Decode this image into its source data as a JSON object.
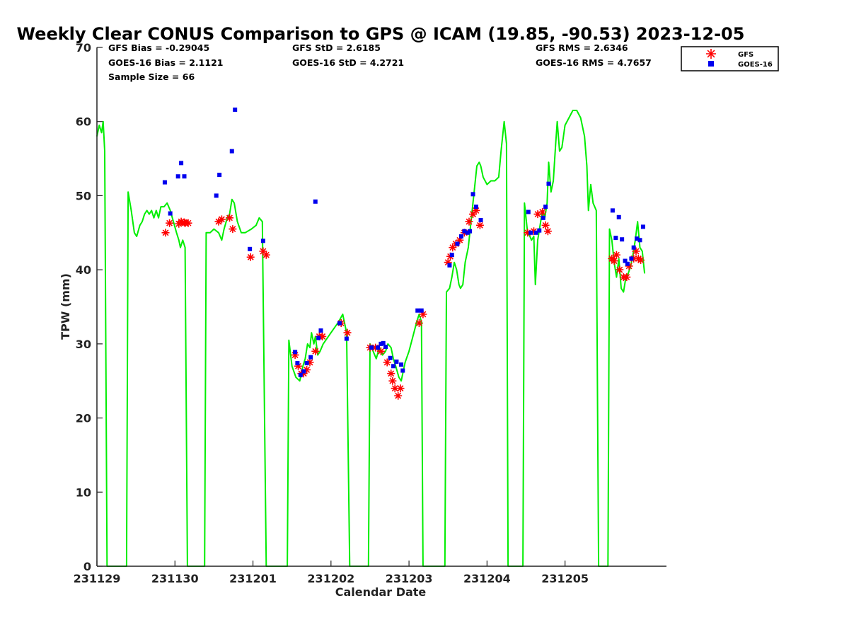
{
  "chart_data": {
    "type": "line",
    "title": "Weekly Clear CONUS Comparison to GPS @ ICAM (19.85, -90.53) 2023-12-05",
    "xlabel": "Calendar Date",
    "ylabel": "TPW (mm)",
    "xlim": [
      0,
      7.3
    ],
    "ylim": [
      0,
      70
    ],
    "x_ticks": [
      {
        "v": 0,
        "label": "231129"
      },
      {
        "v": 1,
        "label": "231130"
      },
      {
        "v": 2,
        "label": "231201"
      },
      {
        "v": 3,
        "label": "231202"
      },
      {
        "v": 4,
        "label": "231203"
      },
      {
        "v": 5,
        "label": "231204"
      },
      {
        "v": 6,
        "label": "231205"
      }
    ],
    "y_ticks": [
      0,
      10,
      20,
      30,
      40,
      50,
      60,
      70
    ],
    "grid": false,
    "legend_position": "top-right (outside plot)",
    "stats": [
      {
        "text": "GFS Bias = -0.29045",
        "col": 0,
        "row": 0
      },
      {
        "text": "GOES-16 Bias = 2.1121",
        "col": 0,
        "row": 1
      },
      {
        "text": "Sample Size = 66",
        "col": 0,
        "row": 2
      },
      {
        "text": "GFS StD = 2.6185",
        "col": 1,
        "row": 0
      },
      {
        "text": "GOES-16 StD = 4.2721",
        "col": 1,
        "row": 1
      },
      {
        "text": "GFS RMS = 2.6346",
        "col": 2,
        "row": 0
      },
      {
        "text": "GOES-16 RMS = 4.7657",
        "col": 2,
        "row": 1
      }
    ],
    "series": [
      {
        "name": "GPS",
        "kind": "line",
        "color": "#00ee00",
        "points": [
          [
            0.0,
            58
          ],
          [
            0.03,
            59.5
          ],
          [
            0.06,
            58.5
          ],
          [
            0.08,
            60
          ],
          [
            0.1,
            56
          ],
          [
            0.13,
            0
          ],
          [
            0.38,
            0
          ],
          [
            0.4,
            50.5
          ],
          [
            0.44,
            48
          ],
          [
            0.48,
            45
          ],
          [
            0.51,
            44.5
          ],
          [
            0.55,
            46
          ],
          [
            0.58,
            46.5
          ],
          [
            0.61,
            47.5
          ],
          [
            0.64,
            48
          ],
          [
            0.67,
            47.5
          ],
          [
            0.7,
            48
          ],
          [
            0.73,
            47
          ],
          [
            0.76,
            48
          ],
          [
            0.79,
            47
          ],
          [
            0.82,
            48.5
          ],
          [
            0.86,
            48.5
          ],
          [
            0.9,
            49
          ],
          [
            0.94,
            48
          ],
          [
            0.98,
            46.5
          ],
          [
            1.02,
            45
          ],
          [
            1.05,
            44
          ],
          [
            1.07,
            43
          ],
          [
            1.1,
            44
          ],
          [
            1.13,
            43
          ],
          [
            1.16,
            0
          ],
          [
            1.38,
            0
          ],
          [
            1.4,
            45
          ],
          [
            1.45,
            45
          ],
          [
            1.5,
            45.5
          ],
          [
            1.56,
            45
          ],
          [
            1.6,
            44
          ],
          [
            1.63,
            45.5
          ],
          [
            1.67,
            47
          ],
          [
            1.7,
            47.5
          ],
          [
            1.73,
            49.5
          ],
          [
            1.76,
            49
          ],
          [
            1.8,
            46.5
          ],
          [
            1.85,
            45
          ],
          [
            1.9,
            45
          ],
          [
            1.98,
            45.5
          ],
          [
            2.04,
            46
          ],
          [
            2.08,
            47
          ],
          [
            2.12,
            46.5
          ],
          [
            2.17,
            0
          ],
          [
            2.44,
            0
          ],
          [
            2.46,
            30.5
          ],
          [
            2.5,
            27
          ],
          [
            2.55,
            25.5
          ],
          [
            2.6,
            25
          ],
          [
            2.64,
            27
          ],
          [
            2.67,
            28
          ],
          [
            2.7,
            30
          ],
          [
            2.73,
            29.5
          ],
          [
            2.75,
            31.5
          ],
          [
            2.78,
            30
          ],
          [
            2.8,
            31
          ],
          [
            2.83,
            28.5
          ],
          [
            2.86,
            29
          ],
          [
            2.9,
            30
          ],
          [
            3.0,
            31.5
          ],
          [
            3.1,
            33
          ],
          [
            3.15,
            34
          ],
          [
            3.2,
            31.5
          ],
          [
            3.24,
            0
          ],
          [
            3.48,
            0
          ],
          [
            3.5,
            30
          ],
          [
            3.54,
            29
          ],
          [
            3.58,
            28
          ],
          [
            3.62,
            29.5
          ],
          [
            3.66,
            28.5
          ],
          [
            3.7,
            29
          ],
          [
            3.73,
            30
          ],
          [
            3.77,
            29.5
          ],
          [
            3.8,
            28
          ],
          [
            3.83,
            27
          ],
          [
            3.87,
            25.5
          ],
          [
            3.9,
            25
          ],
          [
            3.95,
            27.5
          ],
          [
            4.0,
            29
          ],
          [
            4.05,
            31
          ],
          [
            4.1,
            33
          ],
          [
            4.13,
            34
          ],
          [
            4.16,
            33
          ],
          [
            4.18,
            0
          ],
          [
            4.46,
            0
          ],
          [
            4.48,
            37
          ],
          [
            4.52,
            37.5
          ],
          [
            4.55,
            39
          ],
          [
            4.58,
            41
          ],
          [
            4.61,
            40
          ],
          [
            4.64,
            38
          ],
          [
            4.66,
            37.5
          ],
          [
            4.69,
            38
          ],
          [
            4.72,
            41
          ],
          [
            4.76,
            43
          ],
          [
            4.79,
            46
          ],
          [
            4.82,
            49
          ],
          [
            4.85,
            52
          ],
          [
            4.87,
            54
          ],
          [
            4.9,
            54.5
          ],
          [
            4.92,
            54
          ],
          [
            4.95,
            52.5
          ],
          [
            5.0,
            51.5
          ],
          [
            5.05,
            52
          ],
          [
            5.1,
            52
          ],
          [
            5.15,
            52.5
          ],
          [
            5.18,
            56
          ],
          [
            5.22,
            60
          ],
          [
            5.25,
            57
          ],
          [
            5.27,
            0
          ],
          [
            5.46,
            0
          ],
          [
            5.48,
            49
          ],
          [
            5.52,
            45
          ],
          [
            5.55,
            44.5
          ],
          [
            5.57,
            44
          ],
          [
            5.6,
            44.5
          ],
          [
            5.62,
            38
          ],
          [
            5.65,
            44
          ],
          [
            5.68,
            46
          ],
          [
            5.71,
            48
          ],
          [
            5.74,
            47
          ],
          [
            5.77,
            49
          ],
          [
            5.79,
            54.5
          ],
          [
            5.82,
            50.5
          ],
          [
            5.85,
            52
          ],
          [
            5.88,
            57
          ],
          [
            5.9,
            60
          ],
          [
            5.93,
            56
          ],
          [
            5.96,
            56.5
          ],
          [
            6.0,
            59.5
          ],
          [
            6.05,
            60.5
          ],
          [
            6.1,
            61.5
          ],
          [
            6.15,
            61.5
          ],
          [
            6.2,
            60.5
          ],
          [
            6.25,
            58
          ],
          [
            6.28,
            54
          ],
          [
            6.3,
            48
          ],
          [
            6.33,
            51.5
          ],
          [
            6.36,
            49
          ],
          [
            6.4,
            48
          ],
          [
            6.43,
            0
          ],
          [
            6.55,
            0
          ],
          [
            6.57,
            45.5
          ],
          [
            6.6,
            44
          ],
          [
            6.63,
            41
          ],
          [
            6.66,
            39
          ],
          [
            6.69,
            41.5
          ],
          [
            6.72,
            37.5
          ],
          [
            6.75,
            37
          ],
          [
            6.78,
            39
          ],
          [
            6.81,
            39.5
          ],
          [
            6.84,
            40.5
          ],
          [
            6.87,
            42
          ],
          [
            6.9,
            44
          ],
          [
            6.93,
            46.5
          ],
          [
            6.96,
            43
          ],
          [
            6.99,
            42.5
          ],
          [
            7.02,
            39.5
          ]
        ]
      },
      {
        "name": "GFS",
        "kind": "scatter",
        "marker": "asterisk",
        "color": "#ff0000",
        "points": [
          [
            0.88,
            45
          ],
          [
            0.93,
            46.3
          ],
          [
            1.05,
            46.2
          ],
          [
            1.08,
            46.5
          ],
          [
            1.12,
            46.4
          ],
          [
            1.13,
            46.3
          ],
          [
            1.17,
            46.3
          ],
          [
            1.56,
            46.5
          ],
          [
            1.6,
            46.8
          ],
          [
            1.7,
            47
          ],
          [
            1.74,
            45.5
          ],
          [
            1.97,
            41.7
          ],
          [
            2.13,
            42.5
          ],
          [
            2.17,
            42
          ],
          [
            2.54,
            28.5
          ],
          [
            2.58,
            27
          ],
          [
            2.62,
            26
          ],
          [
            2.65,
            26
          ],
          [
            2.69,
            26.5
          ],
          [
            2.73,
            27.5
          ],
          [
            2.8,
            29
          ],
          [
            2.85,
            31
          ],
          [
            2.89,
            31
          ],
          [
            3.13,
            32.8
          ],
          [
            3.21,
            31.5
          ],
          [
            3.5,
            29.5
          ],
          [
            3.57,
            29.5
          ],
          [
            3.64,
            29
          ],
          [
            3.72,
            27.5
          ],
          [
            3.77,
            26
          ],
          [
            3.79,
            25
          ],
          [
            3.82,
            24
          ],
          [
            3.86,
            23
          ],
          [
            3.89,
            24
          ],
          [
            4.13,
            32.8
          ],
          [
            4.18,
            34
          ],
          [
            4.5,
            41
          ],
          [
            4.53,
            41.8
          ],
          [
            4.56,
            43
          ],
          [
            4.6,
            43.5
          ],
          [
            4.65,
            44
          ],
          [
            4.71,
            45
          ],
          [
            4.77,
            46.5
          ],
          [
            4.82,
            47.5
          ],
          [
            4.86,
            48
          ],
          [
            4.91,
            46
          ],
          [
            5.52,
            45
          ],
          [
            5.6,
            45.2
          ],
          [
            5.65,
            47.5
          ],
          [
            5.71,
            47.8
          ],
          [
            5.75,
            46
          ],
          [
            5.78,
            45.2
          ],
          [
            6.6,
            41.5
          ],
          [
            6.63,
            41.2
          ],
          [
            6.66,
            42
          ],
          [
            6.7,
            40
          ],
          [
            6.75,
            39
          ],
          [
            6.79,
            39
          ],
          [
            6.82,
            40.5
          ],
          [
            6.88,
            41.5
          ],
          [
            6.91,
            42.5
          ],
          [
            6.94,
            41.5
          ],
          [
            6.97,
            41.3
          ]
        ]
      },
      {
        "name": "GOES-16",
        "kind": "scatter",
        "marker": "square",
        "color": "#0000ee",
        "points": [
          [
            0.87,
            51.8
          ],
          [
            0.94,
            47.6
          ],
          [
            1.04,
            52.6
          ],
          [
            1.08,
            54.4
          ],
          [
            1.12,
            52.6
          ],
          [
            1.53,
            50
          ],
          [
            1.57,
            52.8
          ],
          [
            1.73,
            56
          ],
          [
            1.77,
            61.6
          ],
          [
            1.96,
            42.8
          ],
          [
            2.13,
            43.9
          ],
          [
            2.54,
            28.9
          ],
          [
            2.57,
            27.4
          ],
          [
            2.61,
            25.8
          ],
          [
            2.65,
            26.3
          ],
          [
            2.69,
            27.4
          ],
          [
            2.74,
            28.2
          ],
          [
            2.84,
            30.8
          ],
          [
            2.87,
            31.8
          ],
          [
            2.8,
            49.2
          ],
          [
            3.11,
            32.8
          ],
          [
            3.2,
            30.7
          ],
          [
            3.52,
            29.5
          ],
          [
            3.6,
            29.5
          ],
          [
            3.64,
            30
          ],
          [
            3.67,
            30.1
          ],
          [
            3.7,
            29.6
          ],
          [
            3.76,
            28.1
          ],
          [
            3.8,
            27
          ],
          [
            3.84,
            27.6
          ],
          [
            3.9,
            27.2
          ],
          [
            3.92,
            26.4
          ],
          [
            4.11,
            34.5
          ],
          [
            4.16,
            34.5
          ],
          [
            4.52,
            40.6
          ],
          [
            4.55,
            42
          ],
          [
            4.62,
            43.5
          ],
          [
            4.67,
            44.5
          ],
          [
            4.71,
            45.2
          ],
          [
            4.75,
            45
          ],
          [
            4.78,
            45.2
          ],
          [
            4.82,
            50.2
          ],
          [
            4.86,
            48.5
          ],
          [
            4.92,
            46.7
          ],
          [
            5.53,
            47.8
          ],
          [
            5.56,
            45
          ],
          [
            5.63,
            45
          ],
          [
            5.67,
            45.3
          ],
          [
            5.72,
            47
          ],
          [
            5.75,
            48.5
          ],
          [
            5.79,
            51.6
          ],
          [
            6.61,
            48
          ],
          [
            6.65,
            44.3
          ],
          [
            6.69,
            47.1
          ],
          [
            6.73,
            44.1
          ],
          [
            6.77,
            41.2
          ],
          [
            6.8,
            40.8
          ],
          [
            6.85,
            41.5
          ],
          [
            6.88,
            43
          ],
          [
            6.92,
            44.2
          ],
          [
            6.96,
            44
          ],
          [
            7.0,
            45.8
          ]
        ]
      }
    ],
    "legend": [
      {
        "name": "GFS",
        "marker": "asterisk",
        "color": "#ff0000"
      },
      {
        "name": "GOES-16",
        "marker": "square",
        "color": "#0000ee"
      }
    ]
  }
}
